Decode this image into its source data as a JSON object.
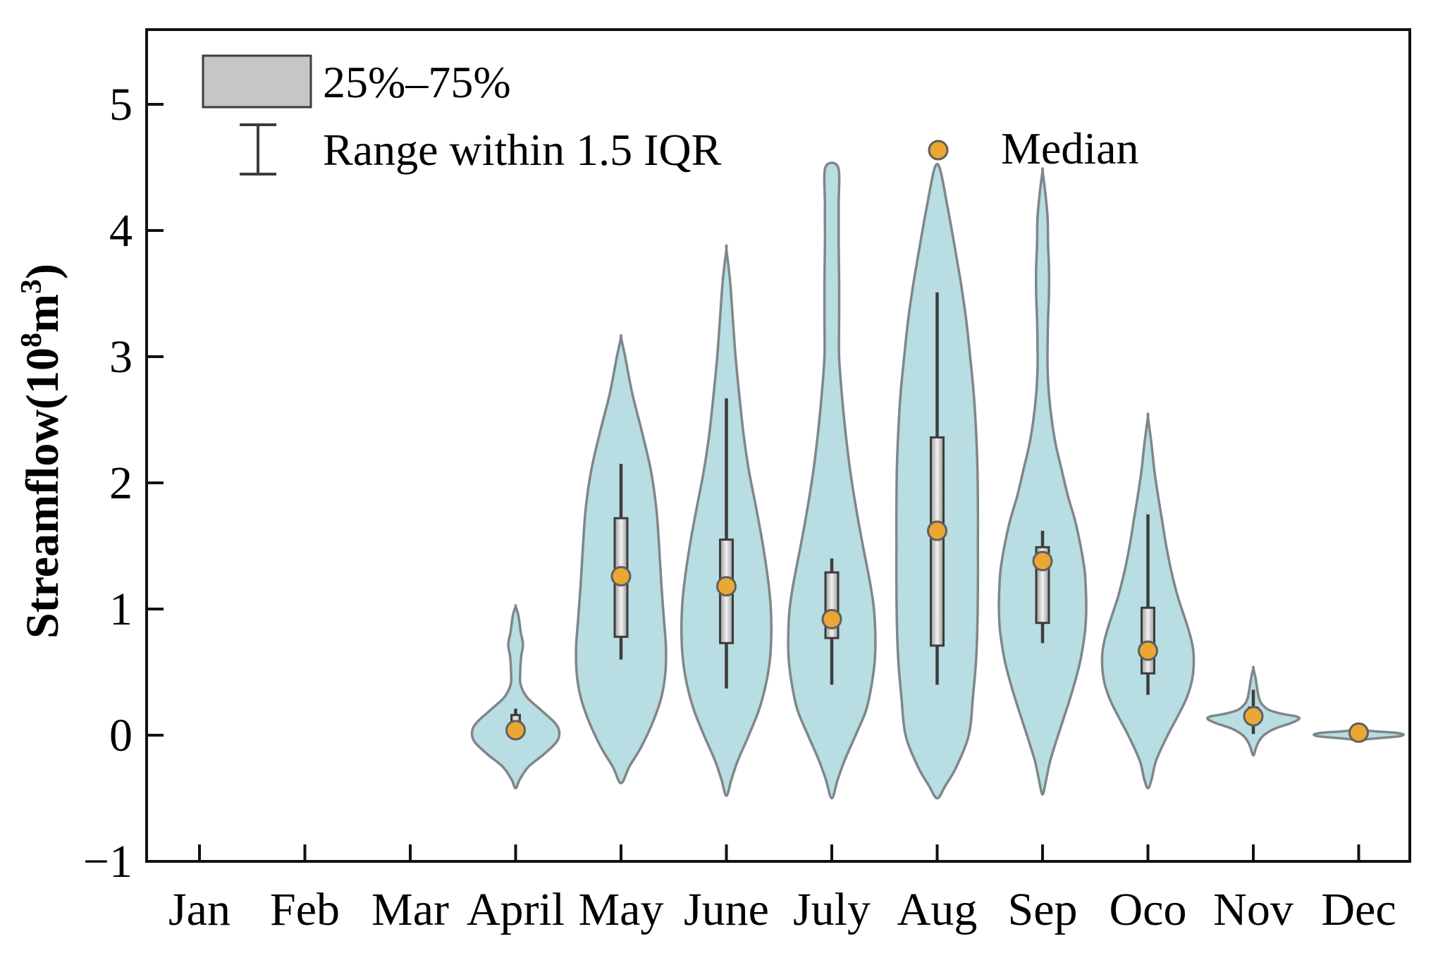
{
  "figure": {
    "legend": {
      "iqr_label": "25%–75%",
      "range_label": "Range within 1.5 IQR",
      "median_label": "Median"
    },
    "colors": {
      "violin_fill": "#b8dde2",
      "violin_stroke": "#7f8689",
      "box_stroke": "#3d3d3d",
      "box_fill_edge": "#9a9a9a",
      "box_fill_center": "#f2f2f2",
      "whisker": "#3d3d3d",
      "median_dot_fill": "#eaa733",
      "median_dot_stroke": "#5f5f5f",
      "frame": "#111111",
      "legend_box_fill": "#c6c6c6",
      "legend_box_stroke": "#3d3d3d"
    }
  },
  "chart_data": {
    "type": "violin",
    "title": "",
    "xlabel": "",
    "ylabel": "Streamflow(10⁸m³)",
    "ylabel_parts": [
      {
        "text": "Streamflow(10",
        "sup": false
      },
      {
        "text": "8",
        "sup": true
      },
      {
        "text": "m",
        "sup": false
      },
      {
        "text": "3",
        "sup": true
      },
      {
        "text": ")",
        "sup": false
      }
    ],
    "categories": [
      "Jan",
      "Feb",
      "Mar",
      "April",
      "May",
      "June",
      "July",
      "Aug",
      "Sep",
      "Oco",
      "Nov",
      "Dec"
    ],
    "yticks": {
      "values": [
        5,
        4,
        3,
        2,
        1,
        0,
        -1
      ],
      "labels": [
        "5",
        "4",
        "3",
        "2",
        "1",
        "0",
        "−1"
      ]
    },
    "ylim": [
      -1,
      5.6
    ],
    "grid": false,
    "legend_position": "top-left and top-right inside plot",
    "no_data_months": [
      "Jan",
      "Feb",
      "Mar"
    ],
    "series": [
      {
        "month": "April",
        "median": 0.04,
        "q1": 0.05,
        "q3": 0.16,
        "whisker_low": 0.01,
        "whisker_high": 0.21,
        "min": -0.42,
        "max": 1.02,
        "density_profile": [
          [
            1.02,
            0
          ],
          [
            0.95,
            0.06
          ],
          [
            0.82,
            0.11
          ],
          [
            0.72,
            0.16
          ],
          [
            0.62,
            0.12
          ],
          [
            0.5,
            0.1
          ],
          [
            0.4,
            0.11
          ],
          [
            0.3,
            0.25
          ],
          [
            0.2,
            0.55
          ],
          [
            0.1,
            0.85
          ],
          [
            0.03,
            0.95
          ],
          [
            -0.05,
            0.9
          ],
          [
            -0.15,
            0.62
          ],
          [
            -0.25,
            0.28
          ],
          [
            -0.35,
            0.09
          ],
          [
            -0.42,
            0
          ]
        ]
      },
      {
        "month": "May",
        "median": 1.26,
        "q1": 0.78,
        "q3": 1.72,
        "whisker_low": 0.6,
        "whisker_high": 2.15,
        "min": -0.38,
        "max": 3.15,
        "density_profile": [
          [
            3.15,
            0
          ],
          [
            3.0,
            0.09
          ],
          [
            2.7,
            0.25
          ],
          [
            2.4,
            0.46
          ],
          [
            2.1,
            0.65
          ],
          [
            1.8,
            0.77
          ],
          [
            1.5,
            0.83
          ],
          [
            1.2,
            0.88
          ],
          [
            0.9,
            0.94
          ],
          [
            0.7,
            0.98
          ],
          [
            0.5,
            0.97
          ],
          [
            0.3,
            0.88
          ],
          [
            0.1,
            0.69
          ],
          [
            -0.1,
            0.43
          ],
          [
            -0.25,
            0.18
          ],
          [
            -0.38,
            0
          ]
        ]
      },
      {
        "month": "June",
        "median": 1.18,
        "q1": 0.73,
        "q3": 1.55,
        "whisker_low": 0.37,
        "whisker_high": 2.67,
        "min": -0.48,
        "max": 3.85,
        "density_profile": [
          [
            3.85,
            0
          ],
          [
            3.6,
            0.08
          ],
          [
            3.3,
            0.14
          ],
          [
            3.0,
            0.2
          ],
          [
            2.7,
            0.28
          ],
          [
            2.4,
            0.37
          ],
          [
            2.1,
            0.49
          ],
          [
            1.8,
            0.65
          ],
          [
            1.5,
            0.8
          ],
          [
            1.2,
            0.92
          ],
          [
            1.0,
            0.97
          ],
          [
            0.8,
            0.98
          ],
          [
            0.6,
            0.95
          ],
          [
            0.4,
            0.86
          ],
          [
            0.2,
            0.71
          ],
          [
            0.0,
            0.49
          ],
          [
            -0.2,
            0.25
          ],
          [
            -0.35,
            0.11
          ],
          [
            -0.48,
            0
          ]
        ]
      },
      {
        "month": "July",
        "median": 0.92,
        "q1": 0.77,
        "q3": 1.29,
        "whisker_low": 0.4,
        "whisker_high": 1.4,
        "min": -0.5,
        "max": 4.5,
        "clipped_top": true,
        "density_profile": [
          [
            4.5,
            0.14
          ],
          [
            4.2,
            0.15
          ],
          [
            3.9,
            0.15
          ],
          [
            3.6,
            0.16
          ],
          [
            3.3,
            0.16
          ],
          [
            3.0,
            0.16
          ],
          [
            2.7,
            0.22
          ],
          [
            2.4,
            0.3
          ],
          [
            2.1,
            0.4
          ],
          [
            1.8,
            0.53
          ],
          [
            1.5,
            0.68
          ],
          [
            1.2,
            0.84
          ],
          [
            1.0,
            0.92
          ],
          [
            0.8,
            0.95
          ],
          [
            0.6,
            0.94
          ],
          [
            0.4,
            0.87
          ],
          [
            0.2,
            0.75
          ],
          [
            0.0,
            0.52
          ],
          [
            -0.2,
            0.28
          ],
          [
            -0.35,
            0.13
          ],
          [
            -0.5,
            0
          ]
        ]
      },
      {
        "month": "Aug",
        "median": 1.62,
        "q1": 0.71,
        "q3": 2.36,
        "whisker_low": 0.4,
        "whisker_high": 3.51,
        "min": -0.5,
        "max": 4.49,
        "density_profile": [
          [
            4.49,
            0.06
          ],
          [
            4.2,
            0.22
          ],
          [
            3.9,
            0.37
          ],
          [
            3.6,
            0.51
          ],
          [
            3.3,
            0.63
          ],
          [
            3.0,
            0.72
          ],
          [
            2.7,
            0.8
          ],
          [
            2.4,
            0.85
          ],
          [
            2.1,
            0.88
          ],
          [
            1.8,
            0.89
          ],
          [
            1.5,
            0.89
          ],
          [
            1.2,
            0.89
          ],
          [
            0.9,
            0.88
          ],
          [
            0.6,
            0.85
          ],
          [
            0.3,
            0.78
          ],
          [
            0.0,
            0.69
          ],
          [
            -0.25,
            0.42
          ],
          [
            -0.4,
            0.18
          ],
          [
            -0.5,
            0
          ]
        ]
      },
      {
        "month": "Sep",
        "median": 1.38,
        "q1": 0.89,
        "q3": 1.49,
        "whisker_low": 0.73,
        "whisker_high": 1.62,
        "min": -0.47,
        "max": 4.47,
        "density_profile": [
          [
            4.47,
            0
          ],
          [
            4.3,
            0.06
          ],
          [
            4.1,
            0.11
          ],
          [
            3.9,
            0.12
          ],
          [
            3.7,
            0.14
          ],
          [
            3.5,
            0.14
          ],
          [
            3.3,
            0.12
          ],
          [
            3.1,
            0.11
          ],
          [
            2.9,
            0.11
          ],
          [
            2.7,
            0.14
          ],
          [
            2.5,
            0.2
          ],
          [
            2.3,
            0.29
          ],
          [
            2.1,
            0.42
          ],
          [
            1.9,
            0.55
          ],
          [
            1.7,
            0.71
          ],
          [
            1.5,
            0.83
          ],
          [
            1.3,
            0.92
          ],
          [
            1.1,
            0.95
          ],
          [
            0.95,
            0.95
          ],
          [
            0.8,
            0.92
          ],
          [
            0.6,
            0.83
          ],
          [
            0.4,
            0.69
          ],
          [
            0.2,
            0.52
          ],
          [
            0.0,
            0.34
          ],
          [
            -0.2,
            0.17
          ],
          [
            -0.35,
            0.08
          ],
          [
            -0.47,
            0
          ]
        ]
      },
      {
        "month": "Oco",
        "median": 0.67,
        "q1": 0.49,
        "q3": 1.01,
        "whisker_low": 0.32,
        "whisker_high": 1.75,
        "min": -0.42,
        "max": 2.52,
        "density_profile": [
          [
            2.52,
            0
          ],
          [
            2.3,
            0.08
          ],
          [
            2.1,
            0.14
          ],
          [
            1.9,
            0.22
          ],
          [
            1.7,
            0.31
          ],
          [
            1.5,
            0.4
          ],
          [
            1.3,
            0.51
          ],
          [
            1.1,
            0.65
          ],
          [
            0.9,
            0.83
          ],
          [
            0.75,
            0.95
          ],
          [
            0.62,
            1.0
          ],
          [
            0.45,
            0.97
          ],
          [
            0.3,
            0.85
          ],
          [
            0.15,
            0.65
          ],
          [
            0.0,
            0.43
          ],
          [
            -0.2,
            0.18
          ],
          [
            -0.35,
            0.08
          ],
          [
            -0.42,
            0
          ]
        ]
      },
      {
        "month": "Nov",
        "median": 0.15,
        "q1": 0.1,
        "q3": 0.22,
        "whisker_low": 0.01,
        "whisker_high": 0.36,
        "min": -0.16,
        "max": 0.53,
        "density_profile": [
          [
            0.53,
            0
          ],
          [
            0.45,
            0.05
          ],
          [
            0.38,
            0.08
          ],
          [
            0.3,
            0.12
          ],
          [
            0.25,
            0.18
          ],
          [
            0.2,
            0.34
          ],
          [
            0.17,
            0.62
          ],
          [
            0.15,
            0.92
          ],
          [
            0.13,
            1.0
          ],
          [
            0.1,
            0.85
          ],
          [
            0.05,
            0.46
          ],
          [
            0.0,
            0.23
          ],
          [
            -0.05,
            0.12
          ],
          [
            -0.1,
            0.06
          ],
          [
            -0.16,
            0
          ]
        ]
      },
      {
        "month": "Dec",
        "median": 0.02,
        "q1": 0.0,
        "q3": 0.04,
        "whisker_low": -0.01,
        "whisker_high": 0.05,
        "min": -0.04,
        "max": 0.05,
        "density_profile": [
          [
            0.05,
            0
          ],
          [
            0.04,
            0.12
          ],
          [
            0.03,
            0.38
          ],
          [
            0.02,
            0.77
          ],
          [
            0.01,
            0.95
          ],
          [
            0.0,
            0.97
          ],
          [
            -0.01,
            0.85
          ],
          [
            -0.02,
            0.54
          ],
          [
            -0.03,
            0.23
          ],
          [
            -0.04,
            0
          ]
        ]
      }
    ]
  }
}
